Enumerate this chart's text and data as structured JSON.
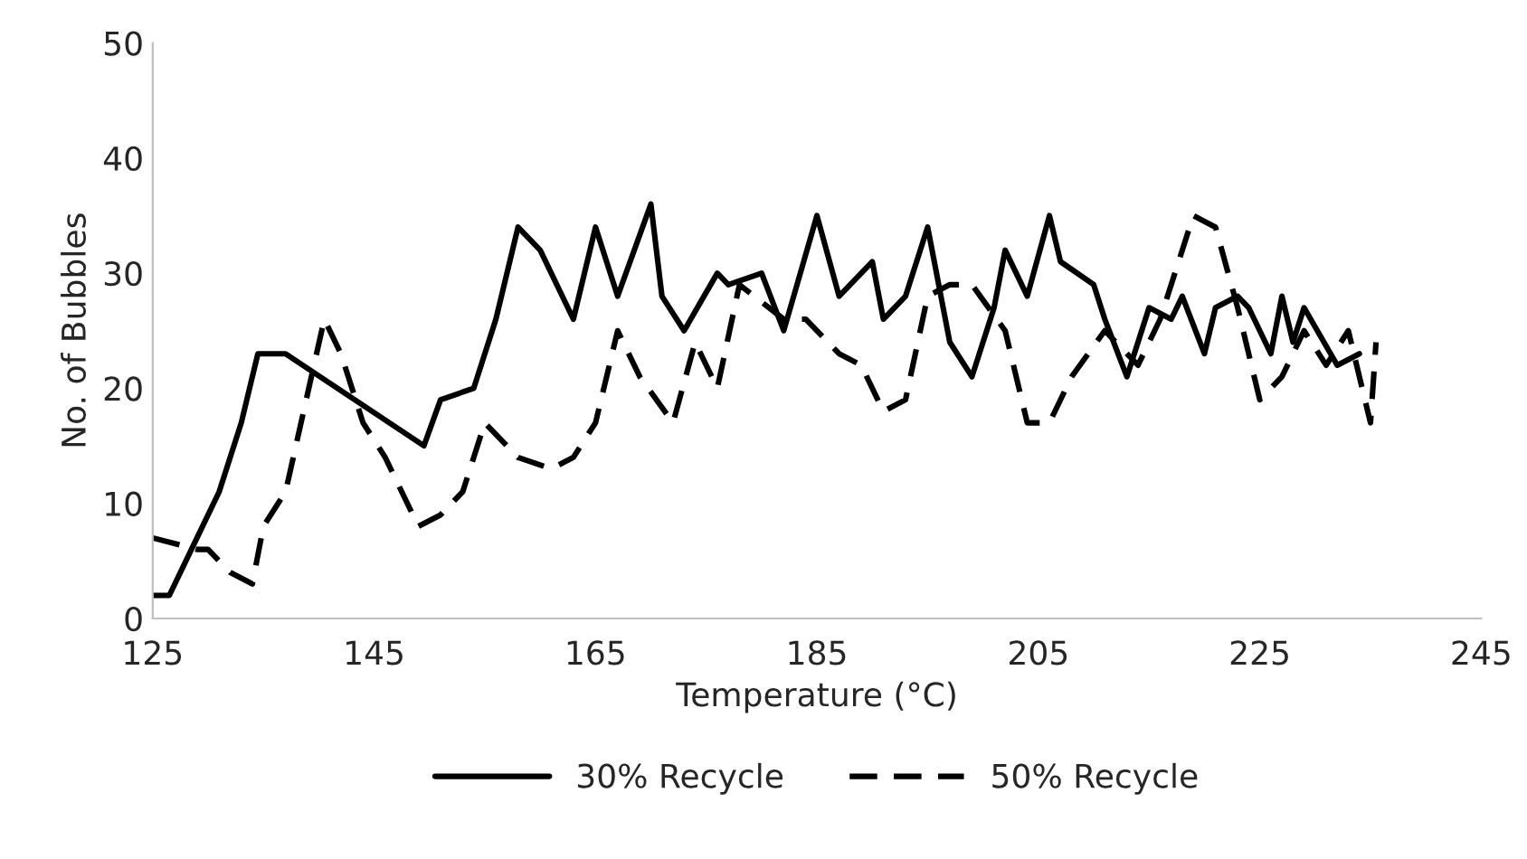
{
  "chart_data": {
    "type": "line",
    "xlabel": "Temperature (°C)",
    "ylabel": "No. of Bubbles",
    "xlim": [
      125,
      245
    ],
    "xticks": [
      125,
      145,
      165,
      185,
      205,
      225,
      245
    ],
    "ylim": [
      0,
      50
    ],
    "yticks": [
      0,
      10,
      20,
      30,
      40,
      50
    ],
    "grid": false,
    "legend": "bottom",
    "series": [
      {
        "name": "30% Recycle",
        "color": "#000000",
        "line_style": "solid",
        "x": [
          125,
          126.5,
          129,
          131,
          133,
          134.5,
          137,
          149.5,
          151,
          154,
          156,
          158,
          160,
          163,
          165,
          167,
          170,
          171,
          173,
          176,
          177,
          180,
          182,
          185,
          187,
          190,
          191,
          193,
          195,
          197,
          199,
          201,
          202,
          204,
          206,
          207,
          210,
          211,
          213,
          214,
          215,
          217,
          218,
          220,
          221,
          223,
          224,
          226,
          227,
          228,
          229,
          232,
          234
        ],
        "values": [
          2,
          2,
          7,
          11,
          17,
          23,
          23,
          15,
          19,
          20,
          26,
          34,
          32,
          26,
          34,
          28,
          36,
          28,
          25,
          30,
          29,
          30,
          25,
          35,
          28,
          31,
          26,
          28,
          34,
          24,
          21,
          27,
          32,
          28,
          35,
          31,
          29,
          26,
          21,
          24,
          27,
          26,
          28,
          23,
          27,
          28,
          27,
          23,
          28,
          24,
          27,
          22,
          23
        ]
      },
      {
        "name": "50% Recycle",
        "color": "#000000",
        "line_style": "dashed",
        "x": [
          125,
          129,
          130,
          132,
          134,
          135,
          137,
          140.5,
          142,
          144,
          146,
          149,
          151,
          153,
          155,
          158,
          161,
          163,
          165,
          167,
          169,
          172,
          174,
          176,
          178,
          182,
          184,
          187,
          189,
          191,
          193,
          195,
          197,
          199,
          202,
          204,
          206,
          208,
          211,
          214,
          216,
          219,
          221,
          223,
          225,
          227,
          229,
          231,
          233,
          235,
          235.5
        ],
        "values": [
          7,
          6,
          6,
          4,
          3,
          8,
          11,
          26,
          23,
          17,
          14,
          8,
          9,
          11,
          17,
          14,
          13,
          14,
          17,
          25,
          21,
          17,
          24,
          20,
          29,
          26,
          26,
          23,
          22,
          18,
          19,
          28,
          29,
          29,
          25,
          17,
          17,
          21,
          25,
          22,
          26,
          35,
          34,
          27,
          19,
          21,
          25,
          22,
          25,
          17,
          24
        ]
      }
    ]
  }
}
